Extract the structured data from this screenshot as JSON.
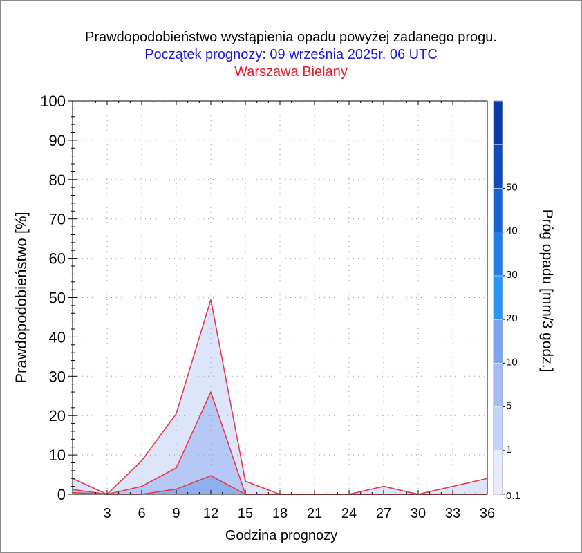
{
  "titles": {
    "line1": "Prawdopodobieństwo wystąpienia opadu powyżej zadanego progu.",
    "line2": "Początek prognozy: 09 września 2025r. 06 UTC",
    "line3": "Warszawa Bielany"
  },
  "colors": {
    "title": "#000000",
    "subtitle": "#1a1ad6",
    "station": "#e01e2e",
    "outline": "#e8384a"
  },
  "chart_data": {
    "type": "area",
    "xlabel": "Godzina prognozy",
    "ylabel": "Prawdopodobieństwo [%]",
    "xlim": [
      0,
      36
    ],
    "ylim": [
      0,
      100
    ],
    "xticks": [
      3,
      6,
      9,
      12,
      15,
      18,
      21,
      24,
      27,
      30,
      33,
      36
    ],
    "yticks": [
      0,
      10,
      20,
      30,
      40,
      50,
      60,
      70,
      80,
      90,
      100
    ],
    "x": [
      0,
      3,
      6,
      9,
      12,
      15,
      18,
      21,
      24,
      27,
      30,
      33,
      36
    ],
    "series": [
      {
        "threshold": "0.1",
        "color": "#dde5fb",
        "values": [
          4,
          0,
          8.5,
          20.5,
          49.5,
          3.3,
          0,
          0,
          0,
          2,
          0,
          2,
          4
        ]
      },
      {
        "threshold": "1",
        "color": "#b5c8f6",
        "values": [
          1.2,
          0,
          2,
          6.7,
          26,
          0,
          0,
          0,
          0,
          0,
          0,
          0,
          0
        ]
      },
      {
        "threshold": "5",
        "color": "#8fb0f0",
        "values": [
          0.4,
          0,
          0,
          1.3,
          4.7,
          0,
          0,
          0,
          0,
          0,
          0,
          0,
          0
        ]
      }
    ],
    "colorbar": {
      "label": "Próg opadu [mm/3 godz.]",
      "labels": [
        "0.1",
        "1",
        "5",
        "10",
        "20",
        "30",
        "40",
        "50"
      ],
      "colors": [
        "#e6ecfd",
        "#c3d2f7",
        "#a3bcf3",
        "#7ea4ee",
        "#2b94f5",
        "#1f7de6",
        "#1664d2",
        "#0e4cbc",
        "#0a3ba6"
      ]
    }
  }
}
